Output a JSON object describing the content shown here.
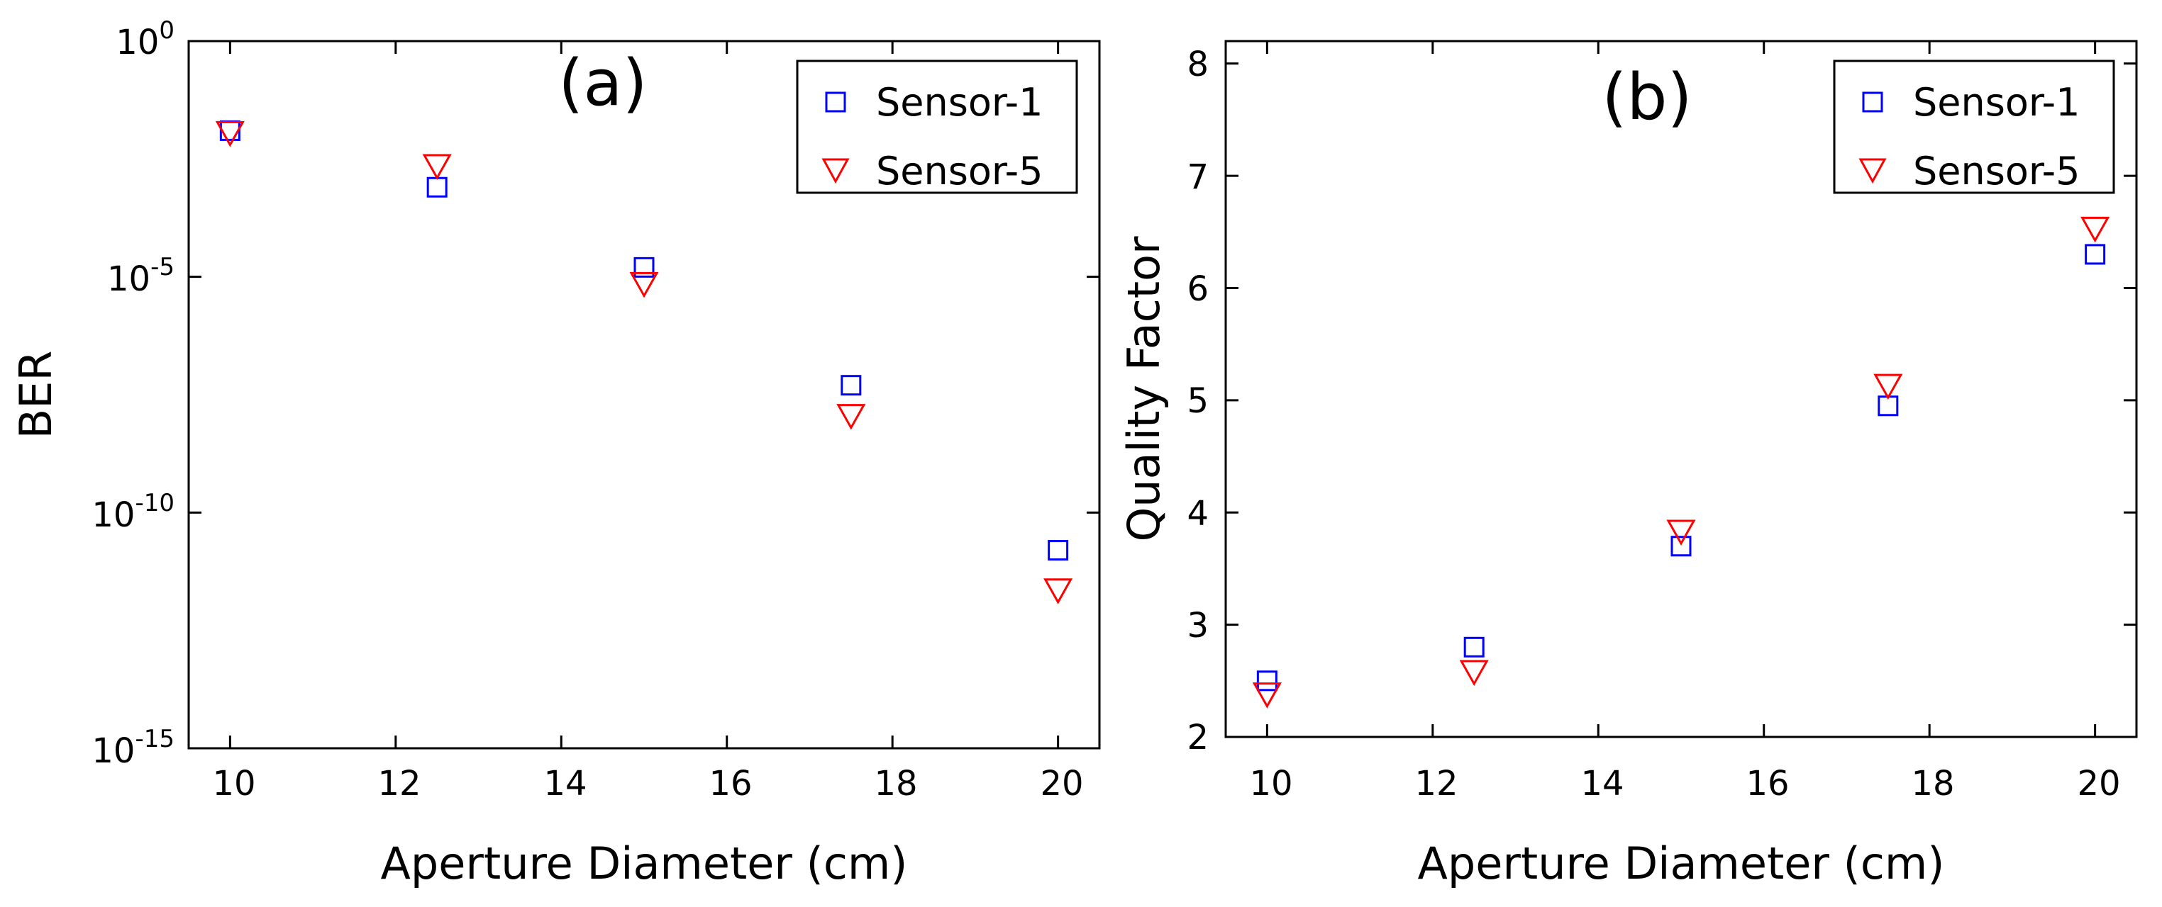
{
  "chart_data": [
    {
      "type": "scatter",
      "panel_label": "(a)",
      "xlabel": "Aperture Diameter (cm)",
      "ylabel": "BER",
      "x": [
        10,
        12.5,
        15,
        17.5,
        20
      ],
      "xlim": [
        9.5,
        20.5
      ],
      "xticks": [
        "10",
        "12",
        "14",
        "16",
        "18",
        "20"
      ],
      "yscale": "log",
      "ylim_exponent": [
        -15,
        0
      ],
      "yticks": [
        {
          "base": "10",
          "exp": "0"
        },
        {
          "base": "10",
          "exp": "-5"
        },
        {
          "base": "10",
          "exp": "-10"
        },
        {
          "base": "10",
          "exp": "-15"
        }
      ],
      "legend_position": "top-right",
      "series": [
        {
          "name": "Sensor-1",
          "marker": "square",
          "color": "#0000ff",
          "values_log10": [
            -1.9,
            -3.1,
            -4.8,
            -7.3,
            -10.8
          ]
        },
        {
          "name": "Sensor-5",
          "marker": "triangle-down",
          "color": "#ff0000",
          "values_log10": [
            -1.9,
            -2.6,
            -5.1,
            -7.9,
            -11.6
          ]
        }
      ]
    },
    {
      "type": "scatter",
      "panel_label": "(b)",
      "xlabel": "Aperture Diameter (cm)",
      "ylabel": "Quality Factor",
      "x": [
        10,
        12.5,
        15,
        17.5,
        20
      ],
      "xlim": [
        9.5,
        20.5
      ],
      "xticks": [
        "10",
        "12",
        "14",
        "16",
        "18",
        "20"
      ],
      "ylim": [
        2,
        8.2
      ],
      "yticks": [
        "2",
        "3",
        "4",
        "5",
        "6",
        "7",
        "8"
      ],
      "legend_position": "top-right",
      "series": [
        {
          "name": "Sensor-1",
          "marker": "square",
          "color": "#0000ff",
          "values": [
            2.5,
            2.8,
            3.7,
            4.95,
            6.3
          ]
        },
        {
          "name": "Sensor-5",
          "marker": "triangle-down",
          "color": "#ff0000",
          "values": [
            2.4,
            2.6,
            3.85,
            5.15,
            6.55
          ]
        }
      ]
    }
  ]
}
